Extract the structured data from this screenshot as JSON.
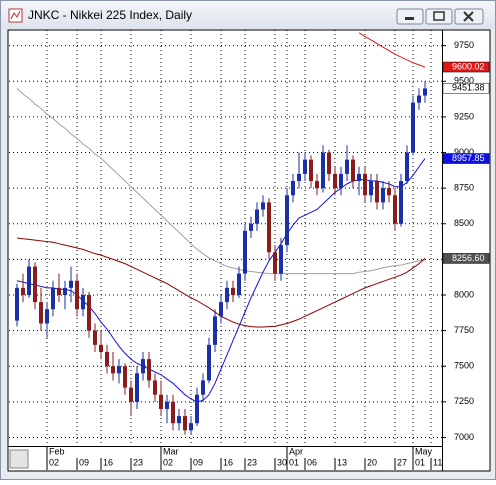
{
  "window_title": "JNKC - Nikkei 225 Index, Daily",
  "chart_data": {
    "type": "candlestick",
    "categories": [
      null,
      null,
      null,
      null,
      null,
      "02",
      null,
      null,
      null,
      null,
      "09",
      null,
      null,
      null,
      "16",
      null,
      null,
      null,
      null,
      "23",
      null,
      null,
      null,
      null,
      "02",
      null,
      null,
      null,
      null,
      "09",
      null,
      null,
      null,
      null,
      "16",
      null,
      null,
      null,
      "23",
      null,
      null,
      null,
      null,
      "30",
      null,
      "01",
      null,
      null,
      "06",
      null,
      null,
      null,
      null,
      "13",
      null,
      null,
      null,
      null,
      "20",
      null,
      null,
      null,
      null,
      "27",
      null,
      null,
      "01",
      null,
      null,
      "11"
    ],
    "month_labels": [
      null,
      null,
      null,
      null,
      null,
      "Feb",
      null,
      null,
      null,
      null,
      null,
      null,
      null,
      null,
      null,
      null,
      null,
      null,
      null,
      null,
      null,
      null,
      null,
      null,
      "Mar",
      null,
      null,
      null,
      null,
      null,
      null,
      null,
      null,
      null,
      null,
      null,
      null,
      null,
      null,
      null,
      null,
      null,
      null,
      null,
      null,
      "Apr",
      null,
      null,
      null,
      null,
      null,
      null,
      null,
      null,
      null,
      null,
      null,
      null,
      null,
      null,
      null,
      null,
      null,
      null,
      null,
      null,
      "May",
      null,
      null,
      null
    ],
    "open": [
      7820,
      8050,
      8000,
      8200,
      7950,
      7800,
      7900,
      8050,
      8000,
      8050,
      8100,
      7900,
      8000,
      7750,
      7650,
      7600,
      7500,
      7450,
      7500,
      7350,
      7250,
      7450,
      7550,
      7400,
      7300,
      7200,
      7250,
      7100,
      7150,
      7050,
      7100,
      7300,
      7400,
      7650,
      7850,
      7950,
      8050,
      8000,
      8150,
      8450,
      8500,
      8600,
      8650,
      8300,
      8150,
      8350,
      8700,
      8800,
      8850,
      8950,
      8800,
      8750,
      9000,
      8850,
      8750,
      8850,
      8950,
      8800,
      8850,
      8700,
      8800,
      8650,
      8750,
      8700,
      8500,
      8800,
      9000,
      9350,
      9400,
      null
    ],
    "high": [
      8080,
      8150,
      8250,
      8230,
      8050,
      7950,
      8100,
      8150,
      8100,
      8200,
      8150,
      8050,
      8020,
      7800,
      7750,
      7650,
      7600,
      7550,
      7520,
      7400,
      7500,
      7600,
      7600,
      7450,
      7400,
      7300,
      7300,
      7200,
      7200,
      7150,
      7350,
      7450,
      7700,
      7900,
      8000,
      8100,
      8100,
      8200,
      8500,
      8550,
      8650,
      8700,
      8680,
      8350,
      8400,
      8750,
      8850,
      9000,
      9000,
      8980,
      8850,
      9050,
      9020,
      8900,
      8900,
      9050,
      8980,
      8900,
      8900,
      8850,
      8850,
      8800,
      8800,
      8750,
      8850,
      9050,
      9400,
      9450,
      9500,
      null
    ],
    "low": [
      7780,
      7950,
      7980,
      7900,
      7750,
      7700,
      7850,
      7950,
      7900,
      7950,
      7850,
      7850,
      7700,
      7600,
      7550,
      7450,
      7400,
      7380,
      7300,
      7150,
      7200,
      7400,
      7350,
      7250,
      7150,
      7100,
      7050,
      7050,
      7020,
      7020,
      7080,
      7250,
      7380,
      7600,
      7800,
      7900,
      7950,
      7980,
      8100,
      8400,
      8450,
      8550,
      8250,
      8100,
      8100,
      8300,
      8650,
      8750,
      8800,
      8750,
      8700,
      8720,
      8800,
      8700,
      8700,
      8800,
      8750,
      8700,
      8650,
      8650,
      8600,
      8600,
      8650,
      8450,
      8480,
      8780,
      8980,
      9300,
      9350,
      null
    ],
    "close": [
      8050,
      8000,
      8200,
      7950,
      7800,
      7900,
      8050,
      8000,
      8050,
      8100,
      7900,
      8000,
      7750,
      7650,
      7600,
      7500,
      7450,
      7500,
      7350,
      7250,
      7450,
      7550,
      7400,
      7300,
      7200,
      7250,
      7100,
      7150,
      7050,
      7100,
      7300,
      7400,
      7650,
      7850,
      7950,
      8050,
      8000,
      8150,
      8450,
      8500,
      8600,
      8650,
      8300,
      8150,
      8350,
      8700,
      8800,
      8850,
      8950,
      8800,
      8750,
      9000,
      8850,
      8750,
      8850,
      8950,
      8800,
      8850,
      8700,
      8800,
      8650,
      8750,
      8700,
      8500,
      8800,
      9000,
      9350,
      9400,
      9450,
      null
    ],
    "up_color": "#1a2fa8",
    "down_color": "#8b1c1c",
    "overlays": [
      {
        "color": "#e01818",
        "values": [
          null,
          null,
          null,
          null,
          null,
          null,
          null,
          null,
          null,
          null,
          null,
          null,
          null,
          null,
          null,
          null,
          null,
          null,
          null,
          null,
          null,
          null,
          null,
          null,
          null,
          null,
          null,
          null,
          null,
          null,
          null,
          null,
          null,
          null,
          null,
          null,
          null,
          null,
          null,
          null,
          null,
          null,
          null,
          null,
          null,
          null,
          null,
          null,
          null,
          null,
          null,
          null,
          null,
          null,
          null,
          null,
          null,
          9840,
          9815,
          9790,
          9765,
          9740,
          9715,
          9690,
          9670,
          9650,
          9630,
          9615,
          9600.02,
          null
        ]
      },
      {
        "color": "#a0a0a0",
        "values": [
          9450,
          9410,
          9380,
          9340,
          9310,
          9270,
          9240,
          9200,
          9170,
          9130,
          9100,
          9060,
          9030,
          8990,
          8960,
          8920,
          8880,
          8840,
          8800,
          8760,
          8720,
          8680,
          8640,
          8600,
          8560,
          8520,
          8480,
          8440,
          8400,
          8360,
          8320,
          8290,
          8260,
          8240,
          8220,
          8200,
          8190,
          8180,
          8170,
          8165,
          8160,
          8155,
          8150,
          8150,
          8150,
          8150,
          8150,
          8150,
          8150,
          8150,
          8150,
          8150,
          8150,
          8150,
          8150,
          8150,
          8150,
          8160,
          8165,
          8170,
          8180,
          8190,
          8200,
          8205,
          8210,
          8220,
          8230,
          8240,
          8246,
          null
        ]
      },
      {
        "color": "#8b0000",
        "values": [
          8400,
          8395,
          8390,
          8385,
          8380,
          8375,
          8370,
          8360,
          8350,
          8340,
          8330,
          8320,
          8305,
          8290,
          8280,
          8265,
          8250,
          8235,
          8220,
          8200,
          8180,
          8160,
          8140,
          8120,
          8100,
          8080,
          8055,
          8030,
          8005,
          7980,
          7960,
          7935,
          7910,
          7880,
          7850,
          7830,
          7810,
          7795,
          7785,
          7778,
          7775,
          7775,
          7778,
          7780,
          7790,
          7800,
          7815,
          7830,
          7850,
          7870,
          7890,
          7910,
          7930,
          7950,
          7970,
          7990,
          8010,
          8030,
          8050,
          8065,
          8080,
          8095,
          8110,
          8125,
          8140,
          8160,
          8190,
          8220,
          8256.6,
          null
        ]
      },
      {
        "color": "#1010e0",
        "values": [
          8100,
          8090,
          8080,
          8070,
          8060,
          8050,
          8050,
          8040,
          8040,
          8030,
          8000,
          7960,
          7920,
          7870,
          7810,
          7760,
          7700,
          7640,
          7590,
          7550,
          7520,
          7500,
          7480,
          7460,
          7440,
          7410,
          7380,
          7340,
          7300,
          7270,
          7250,
          7260,
          7300,
          7380,
          7480,
          7580,
          7680,
          7780,
          7880,
          7980,
          8070,
          8160,
          8240,
          8300,
          8360,
          8430,
          8490,
          8540,
          8560,
          8580,
          8600,
          8640,
          8680,
          8720,
          8750,
          8780,
          8800,
          8810,
          8810,
          8800,
          8800,
          8790,
          8780,
          8760,
          8760,
          8790,
          8840,
          8900,
          8957.85,
          null
        ]
      }
    ],
    "price_labels": [
      {
        "value": 9600.02,
        "label": "9600.02",
        "color": "#e01818",
        "text_color": "#ffffff"
      },
      {
        "value": 9451.38,
        "label": "9451.38",
        "color": "#ffffff",
        "text_color": "#000000"
      },
      {
        "value": 8957.85,
        "label": "8957.85",
        "color": "#1010e0",
        "text_color": "#ffffff"
      },
      {
        "value": 8256.6,
        "label": "8256.60",
        "color": "#505050",
        "text_color": "#ffffff"
      }
    ],
    "ylim": [
      6940,
      9860
    ],
    "yticks": [
      7000,
      7250,
      7500,
      7750,
      8000,
      8250,
      8500,
      8750,
      9000,
      9250,
      9500,
      9750
    ],
    "grid": true
  }
}
